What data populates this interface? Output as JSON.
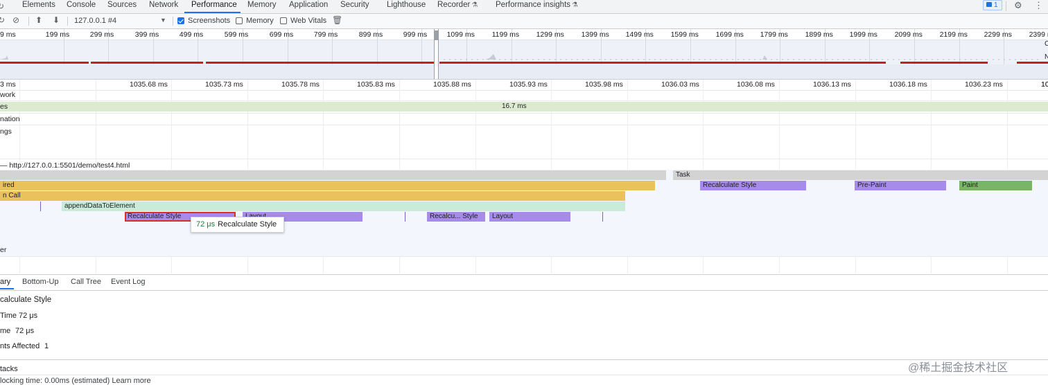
{
  "tabs": [
    {
      "label": "Elements"
    },
    {
      "label": "Console"
    },
    {
      "label": "Sources"
    },
    {
      "label": "Network"
    },
    {
      "label": "Performance"
    },
    {
      "label": "Memory"
    },
    {
      "label": "Application"
    },
    {
      "label": "Security"
    },
    {
      "label": "Lighthouse"
    },
    {
      "label": "Recorder"
    },
    {
      "label": "Performance insights"
    }
  ],
  "active_tab": "Performance",
  "issues_count": "1",
  "toolbar": {
    "profile_select": "127.0.0.1 #4",
    "screenshots_label": "Screenshots",
    "screenshots_checked": true,
    "memory_label": "Memory",
    "memory_checked": false,
    "webvitals_label": "Web Vitals",
    "webvitals_checked": false
  },
  "overview": {
    "tick_labels": [
      "9 ms",
      "199 ms",
      "299 ms",
      "399 ms",
      "499 ms",
      "599 ms",
      "699 ms",
      "799 ms",
      "899 ms",
      "999 ms",
      "1099 ms",
      "1199 ms",
      "1299 ms",
      "1399 ms",
      "1499 ms",
      "1599 ms",
      "1699 ms",
      "1799 ms",
      "1899 ms",
      "1999 ms",
      "2099 ms",
      "2199 ms",
      "2299 ms",
      "2399 ms"
    ],
    "side_letters": [
      "C",
      "N"
    ]
  },
  "ruler": {
    "labels": [
      "3 ms",
      "1035.68 ms",
      "1035.73 ms",
      "1035.78 ms",
      "1035.83 ms",
      "1035.88 ms",
      "1035.93 ms",
      "1035.98 ms",
      "1036.03 ms",
      "1036.08 ms",
      "1036.13 ms",
      "1036.18 ms",
      "1036.23 ms",
      "1036.28 ms",
      "10"
    ]
  },
  "tracks": {
    "network": "work",
    "frames": "es",
    "frames_duration": "16.7 ms",
    "animation": "nation",
    "timings": "ngs",
    "main_thread": "— http://127.0.0.1:5501/demo/test4.html",
    "raster": "er"
  },
  "flame": {
    "task": "Task",
    "row1_left": "ired",
    "recalc_style": "Recalculate Style",
    "pre_paint": "Pre-Paint",
    "paint": "Paint",
    "row2_left": "n Call",
    "append": "appendDataToElement",
    "layout": "Layout",
    "recalc_short": "Recalcu... Style"
  },
  "tooltip": {
    "duration": "72 μs",
    "name": "Recalculate Style"
  },
  "bottom": {
    "tabs": [
      "ary",
      "Bottom-Up",
      "Call Tree",
      "Event Log"
    ],
    "title": "calculate Style",
    "rows": [
      {
        "label": "Time",
        "value": "72 μs"
      },
      {
        "label": "me",
        "value": "72 μs"
      },
      {
        "label": "nts Affected",
        "value": "1"
      }
    ],
    "stacks": "tacks",
    "blocking": "locking time: 0.00ms (estimated) Learn more"
  },
  "watermark": "@稀土掘金技术社区"
}
